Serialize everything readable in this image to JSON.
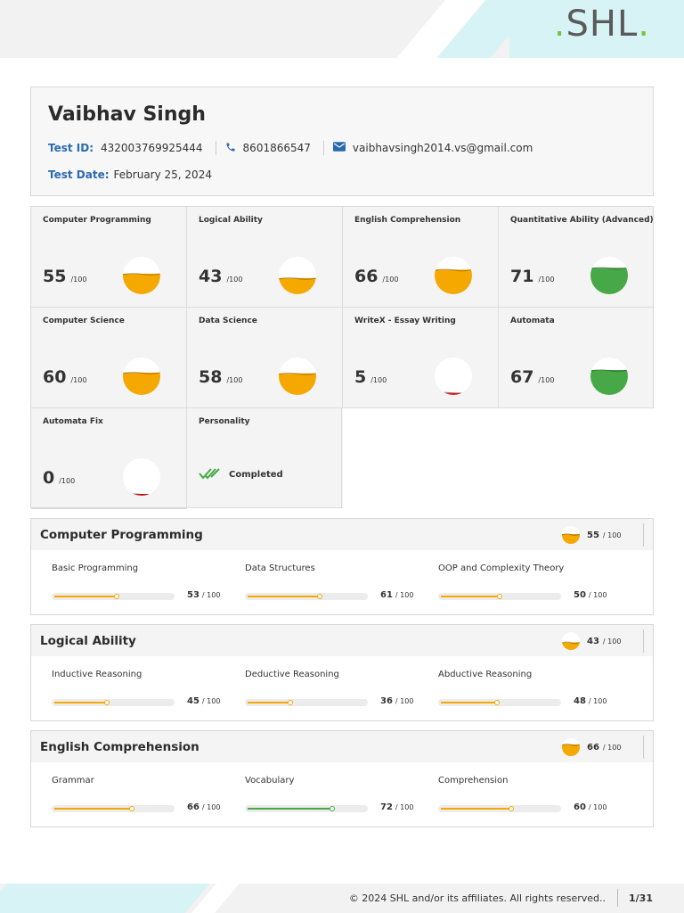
{
  "brand": {
    "logo_text": "SHL",
    "logo_dot": "."
  },
  "candidate": {
    "name": "Vaibhav Singh",
    "test_id_label": "Test ID:",
    "test_id": "432003769925444",
    "phone": "8601866547",
    "email": "vaibhavsingh2014.vs@gmail.com",
    "test_date_label": "Test Date:",
    "test_date": "February 25, 2024"
  },
  "scores": [
    {
      "title": "Computer Programming",
      "score": "55",
      "max": "/100",
      "value": 55,
      "color": "#f5a800"
    },
    {
      "title": "Logical Ability",
      "score": "43",
      "max": "/100",
      "value": 43,
      "color": "#f5a800"
    },
    {
      "title": "English Comprehension",
      "score": "66",
      "max": "/100",
      "value": 66,
      "color": "#f5a800"
    },
    {
      "title": "Quantitative Ability (Advanced)",
      "score": "71",
      "max": "/100",
      "value": 71,
      "color": "#46a846"
    },
    {
      "title": "Computer Science",
      "score": "60",
      "max": "/100",
      "value": 60,
      "color": "#f5a800"
    },
    {
      "title": "Data Science",
      "score": "58",
      "max": "/100",
      "value": 58,
      "color": "#f5a800"
    },
    {
      "title": "WriteX - Essay Writing",
      "score": "5",
      "max": "/100",
      "value": 5,
      "color": "#e02020"
    },
    {
      "title": "Automata",
      "score": "67",
      "max": "/100",
      "value": 67,
      "color": "#46a846"
    },
    {
      "title": "Automata Fix",
      "score": "0",
      "max": "/100",
      "value": 0,
      "color": "#e02020"
    }
  ],
  "personality": {
    "title": "Personality",
    "status": "Completed"
  },
  "sections": [
    {
      "title": "Computer Programming",
      "score": "55",
      "max": "/ 100",
      "value": 55,
      "subs": [
        {
          "name": "Basic Programming",
          "score": "53",
          "max": "/ 100",
          "value": 53,
          "color": "#f5a800"
        },
        {
          "name": "Data Structures",
          "score": "61",
          "max": "/ 100",
          "value": 61,
          "color": "#f5a800"
        },
        {
          "name": "OOP and Complexity Theory",
          "score": "50",
          "max": "/ 100",
          "value": 50,
          "color": "#f5a800"
        }
      ]
    },
    {
      "title": "Logical Ability",
      "score": "43",
      "max": "/ 100",
      "value": 43,
      "subs": [
        {
          "name": "Inductive Reasoning",
          "score": "45",
          "max": "/ 100",
          "value": 45,
          "color": "#f5a800"
        },
        {
          "name": "Deductive Reasoning",
          "score": "36",
          "max": "/ 100",
          "value": 36,
          "color": "#f5a800"
        },
        {
          "name": "Abductive Reasoning",
          "score": "48",
          "max": "/ 100",
          "value": 48,
          "color": "#f5a800"
        }
      ]
    },
    {
      "title": "English Comprehension",
      "score": "66",
      "max": "/ 100",
      "value": 66,
      "subs": [
        {
          "name": "Grammar",
          "score": "66",
          "max": "/ 100",
          "value": 66,
          "color": "#f5a800"
        },
        {
          "name": "Vocabulary",
          "score": "72",
          "max": "/ 100",
          "value": 72,
          "color": "#46a846"
        },
        {
          "name": "Comprehension",
          "score": "60",
          "max": "/ 100",
          "value": 60,
          "color": "#f5a800"
        }
      ]
    }
  ],
  "footer": {
    "copyright": "© 2024 SHL and/or its affiliates. All rights reserved..",
    "page": "1/31"
  },
  "icons": {
    "phone": "phone-icon",
    "email": "email-icon",
    "completed": "double-check-icon"
  }
}
